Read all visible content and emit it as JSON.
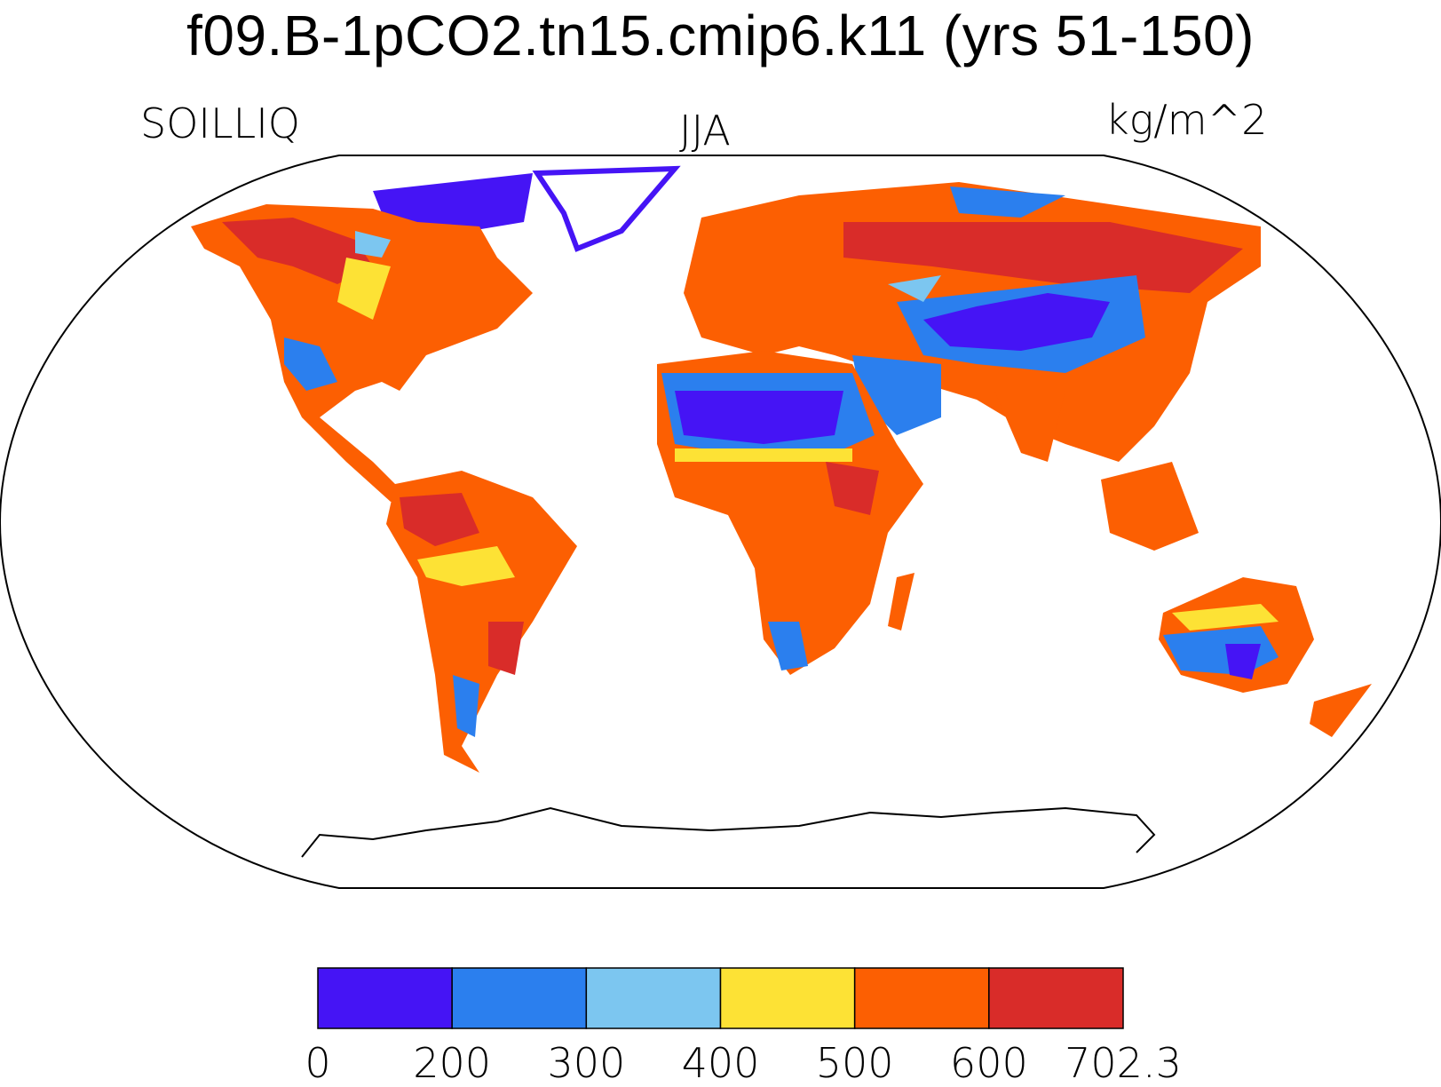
{
  "title": "f09.B-1pCO2.tn15.cmip6.k11 (yrs 51-150)",
  "left_label": "SOILLIQ",
  "center_label": "JJA",
  "right_label": "kg/m^2",
  "colorbar": {
    "colors": [
      "#4514f5",
      "#2b7fee",
      "#7cc6f0",
      "#fde235",
      "#fc5f02",
      "#d92c29"
    ],
    "labels": [
      "0",
      "200",
      "300",
      "400",
      "500",
      "600",
      "702.3"
    ]
  }
}
